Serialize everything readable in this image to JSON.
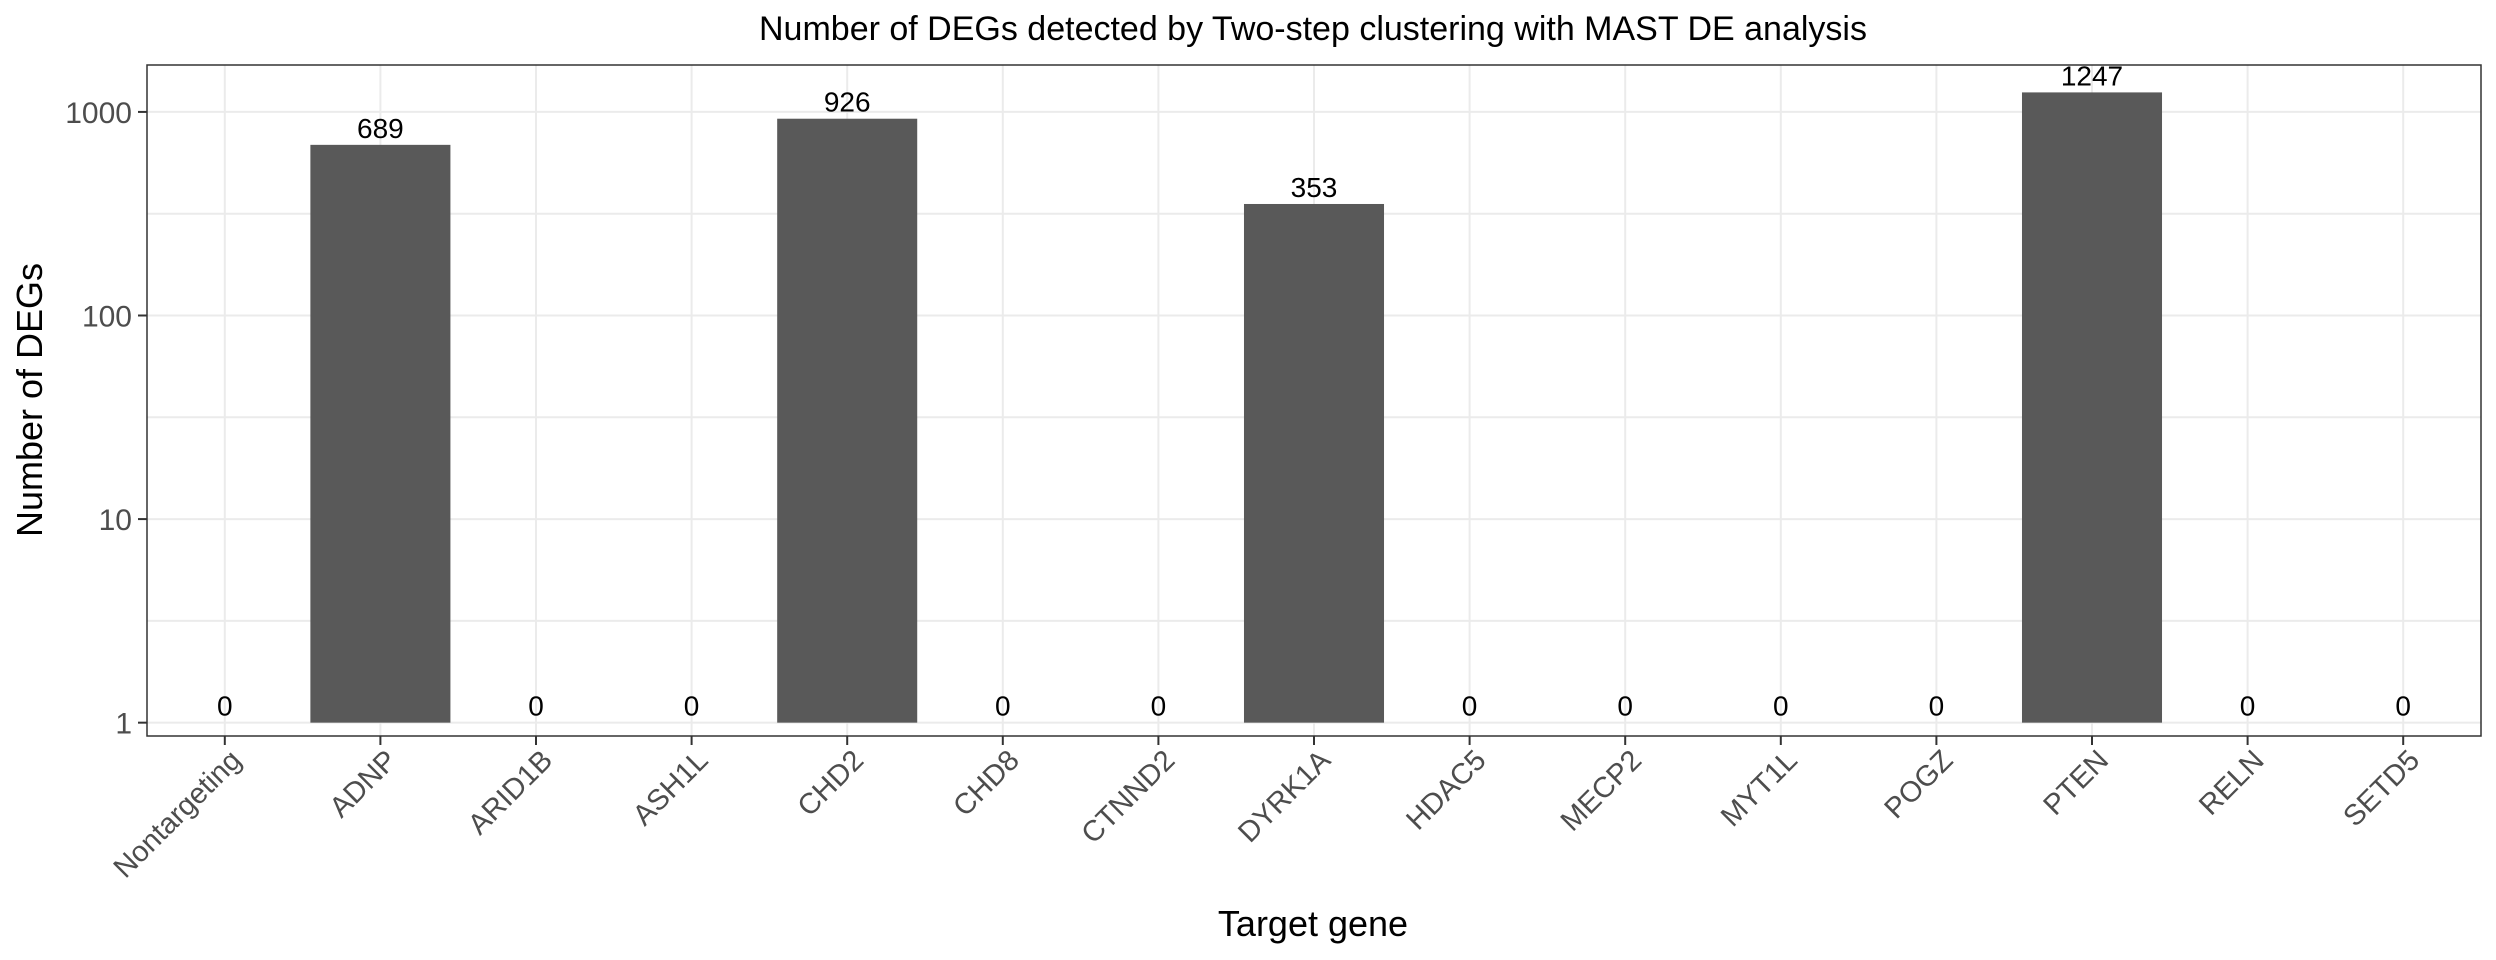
{
  "chart_data": {
    "type": "bar",
    "title": "Number of DEGs detected by Two-step clustering with MAST DE analysis",
    "xlabel": "Target gene",
    "ylabel": "Number of DEGs",
    "y_scale": "log10",
    "ylim": [
      0.86,
      1700
    ],
    "y_ticks": [
      1,
      10,
      100,
      1000
    ],
    "y_tick_labels": [
      "1",
      "10",
      "100",
      "1000"
    ],
    "grid": true,
    "legend": "none",
    "bar_color": "#595959",
    "categories": [
      "Nontargeting",
      "ADNP",
      "ARID1B",
      "ASH1L",
      "CHD2",
      "CHD8",
      "CTNND2",
      "DYRK1A",
      "HDAC5",
      "MECP2",
      "MYT1L",
      "POGZ",
      "PTEN",
      "RELN",
      "SETD5"
    ],
    "values": [
      0,
      689,
      0,
      0,
      926,
      0,
      0,
      353,
      0,
      0,
      0,
      0,
      1247,
      0,
      0
    ],
    "data_labels": [
      "0",
      "689",
      "0",
      "0",
      "926",
      "0",
      "0",
      "353",
      "0",
      "0",
      "0",
      "0",
      "1247",
      "0",
      "0"
    ]
  }
}
